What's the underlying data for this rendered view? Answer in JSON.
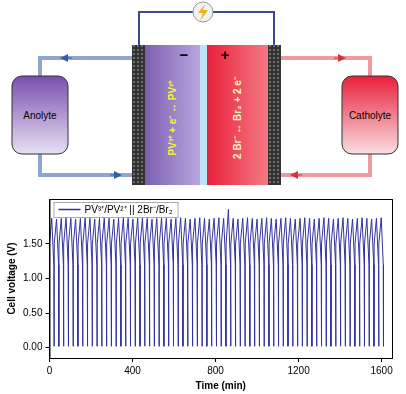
{
  "diagram": {
    "anolyte": "Anolyte",
    "catholyte": "Catholyte",
    "negative": "−",
    "positive": "+",
    "anode_reaction": "PV³⁺ + e⁻ ↔ PV²⁺",
    "cathode_reaction": "2 Br⁻ ↔ Br₂ + 2 e⁻"
  },
  "chart_data": {
    "type": "line",
    "ylabel": "Cell voltage (V)",
    "xlabel": "Time (min)",
    "xlim": [
      0,
      1650
    ],
    "xticks": [
      0,
      400,
      800,
      1200,
      1600
    ],
    "ylim": [
      -0.15,
      2.15
    ],
    "yticks": [
      {
        "value": 0,
        "label": "0.00"
      },
      {
        "value": 0.5,
        "label": "0.50"
      },
      {
        "value": 1,
        "label": "1.00"
      },
      {
        "value": 1.5,
        "label": "1.50"
      }
    ],
    "grid": false,
    "legend": "upper left",
    "x": [
      0,
      11,
      21,
      22,
      23,
      34,
      44,
      45,
      46,
      57,
      67,
      68,
      69,
      80,
      90,
      91,
      92,
      103,
      113,
      114,
      115,
      126,
      136,
      137,
      138,
      149,
      159,
      160,
      161,
      172,
      182,
      183,
      184,
      195,
      205,
      206,
      207,
      218,
      228,
      229,
      230,
      241,
      251,
      252,
      253,
      264,
      274,
      275,
      276,
      287,
      297,
      298,
      299,
      310,
      320,
      321,
      322,
      333,
      343,
      344,
      345,
      356,
      366,
      367,
      368,
      379,
      389,
      390,
      391,
      402,
      412,
      413,
      414,
      425,
      435,
      436,
      437,
      448,
      458,
      459,
      460,
      471,
      481,
      482,
      483,
      494,
      504,
      505,
      506,
      517,
      527,
      528,
      529,
      540,
      550,
      551,
      552,
      563,
      573,
      574,
      575,
      586,
      596,
      597,
      598,
      609,
      619,
      620,
      621,
      632,
      642,
      643,
      644,
      655,
      665,
      666,
      667,
      678,
      688,
      689,
      690,
      701,
      711,
      712,
      713,
      724,
      734,
      735,
      736,
      747,
      757,
      758,
      759,
      770,
      780,
      781,
      782,
      793,
      803,
      804,
      805,
      816,
      826,
      827,
      828,
      839,
      849,
      850,
      851,
      862,
      872,
      873,
      874,
      885,
      895,
      896,
      897,
      908,
      918,
      919,
      920,
      931,
      941,
      942,
      943,
      954,
      964,
      965,
      966,
      977,
      987,
      988,
      989,
      1000,
      1010,
      1011,
      1012,
      1023,
      1033,
      1034,
      1035,
      1046,
      1056,
      1057,
      1058,
      1069,
      1079,
      1080,
      1081,
      1092,
      1102,
      1103,
      1104,
      1115,
      1125,
      1126,
      1127,
      1138,
      1148,
      1149,
      1150,
      1161,
      1171,
      1172,
      1173,
      1184,
      1194,
      1195,
      1196,
      1207,
      1217,
      1218,
      1219,
      1230,
      1240,
      1241,
      1242,
      1253,
      1263,
      1264,
      1265,
      1276,
      1286,
      1287,
      1288,
      1299,
      1309,
      1310,
      1311,
      1322,
      1332,
      1333,
      1334,
      1345,
      1355,
      1356,
      1357,
      1368,
      1378,
      1379,
      1380,
      1391,
      1401,
      1402,
      1403,
      1414,
      1424,
      1425,
      1426,
      1437,
      1447,
      1448,
      1449,
      1460,
      1470,
      1471,
      1472,
      1483,
      1493,
      1494,
      1495,
      1506,
      1516,
      1517,
      1518,
      1529,
      1539,
      1540,
      1541,
      1552,
      1562,
      1563,
      1564,
      1575,
      1585,
      1586,
      1587,
      1598,
      1608,
      1609
    ],
    "series": [
      {
        "name": "PV³⁺/PV²⁺ || 2Br⁻/Br₂",
        "color": "#33339e",
        "values": [
          1.5,
          1.87,
          1.2,
          0.02,
          1.5,
          1.86,
          1.2,
          0.02,
          1.5,
          1.87,
          1.2,
          0.02,
          1.5,
          1.88,
          1.2,
          0.02,
          1.5,
          1.87,
          1.2,
          0.02,
          1.5,
          1.86,
          1.2,
          0.02,
          1.5,
          1.87,
          1.2,
          0.02,
          1.5,
          1.88,
          1.2,
          0.02,
          1.5,
          1.87,
          1.2,
          0.02,
          1.5,
          1.86,
          1.2,
          0.02,
          1.5,
          1.87,
          1.2,
          0.02,
          1.5,
          1.88,
          1.2,
          0.02,
          1.5,
          1.87,
          1.2,
          0.02,
          1.5,
          1.86,
          1.2,
          0.02,
          1.5,
          1.87,
          1.2,
          0.02,
          1.5,
          1.88,
          1.2,
          0.02,
          1.5,
          1.87,
          1.2,
          0.02,
          1.5,
          1.86,
          1.2,
          0.02,
          1.5,
          1.87,
          1.2,
          0.02,
          1.5,
          1.88,
          1.2,
          0.02,
          1.5,
          1.87,
          1.2,
          0.02,
          1.5,
          1.86,
          1.2,
          0.02,
          1.5,
          1.87,
          1.2,
          0.02,
          1.5,
          1.88,
          1.2,
          0.02,
          1.5,
          1.87,
          1.2,
          0.02,
          1.5,
          1.86,
          1.2,
          0.02,
          1.5,
          1.87,
          1.2,
          0.02,
          1.5,
          1.88,
          1.2,
          0.02,
          1.5,
          1.87,
          1.2,
          0.02,
          1.5,
          1.86,
          1.2,
          0.02,
          1.5,
          1.87,
          1.2,
          0.02,
          1.5,
          1.88,
          1.2,
          0.02,
          1.5,
          1.87,
          1.2,
          0.02,
          1.5,
          1.86,
          1.2,
          0.02,
          1.5,
          1.87,
          1.2,
          0.02,
          1.5,
          1.88,
          1.2,
          0.02,
          1.5,
          1.87,
          1.2,
          0.02,
          1.5,
          2.0,
          1.2,
          0.02,
          1.5,
          1.87,
          1.2,
          0.02,
          1.5,
          1.86,
          1.2,
          0.02,
          1.5,
          1.87,
          1.2,
          0.02,
          1.5,
          1.88,
          1.2,
          0.02,
          1.5,
          1.87,
          1.2,
          0.02,
          1.5,
          1.86,
          1.2,
          0.02,
          1.5,
          1.87,
          1.2,
          0.02,
          1.5,
          1.88,
          1.2,
          0.02,
          1.5,
          1.87,
          1.2,
          0.02,
          1.5,
          1.86,
          1.2,
          0.02,
          1.5,
          1.87,
          1.2,
          0.02,
          1.5,
          1.88,
          1.2,
          0.02,
          1.5,
          1.87,
          1.2,
          0.02,
          1.5,
          1.86,
          1.2,
          0.02,
          1.5,
          1.87,
          1.2,
          0.02,
          1.5,
          1.88,
          1.2,
          0.02,
          1.5,
          1.87,
          1.2,
          0.02,
          1.5,
          1.86,
          1.2,
          0.02,
          1.5,
          1.87,
          1.2,
          0.02,
          1.5,
          1.88,
          1.2,
          0.02,
          1.5,
          1.87,
          1.2,
          0.02,
          1.5,
          1.86,
          1.2,
          0.02,
          1.5,
          1.87,
          1.2,
          0.02,
          1.5,
          1.88,
          1.2,
          0.02,
          1.5,
          1.87,
          1.2,
          0.02,
          1.5,
          1.86,
          1.2,
          0.02,
          1.5,
          1.87,
          1.2,
          0.02,
          1.5,
          1.88,
          1.2,
          0.02,
          1.5,
          1.87,
          1.2,
          0.02,
          1.5,
          1.86,
          1.2,
          0.02,
          1.5,
          1.87,
          1.2,
          0.02,
          1.5,
          1.88,
          1.2,
          0.02
        ]
      }
    ]
  }
}
